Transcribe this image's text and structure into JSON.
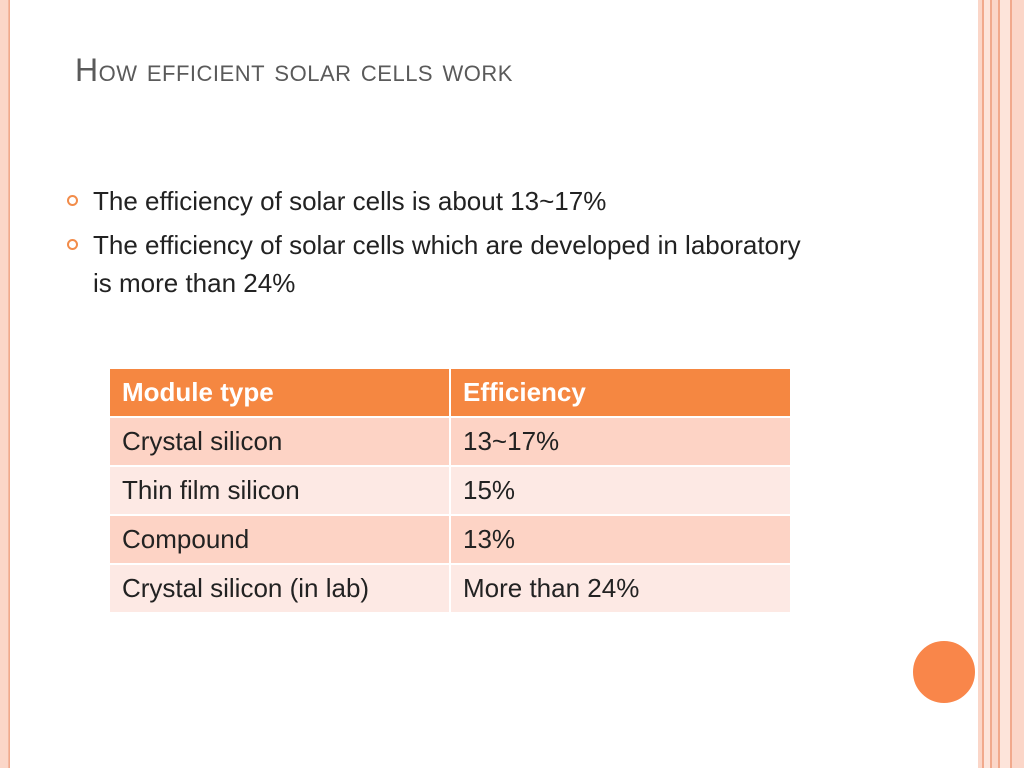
{
  "slide": {
    "title": "How efficient solar cells work",
    "bullets": [
      "The efficiency of solar cells is about 13~17%",
      "The efficiency of solar cells which are developed in laboratory is more than 24%"
    ],
    "table": {
      "headers": [
        "Module type",
        "Efficiency"
      ],
      "rows": [
        [
          "Crystal silicon",
          "13~17%"
        ],
        [
          "Thin film silicon",
          "15%"
        ],
        [
          "Compound",
          "13%"
        ],
        [
          "Crystal silicon (in lab)",
          "More than 24%"
        ]
      ]
    }
  },
  "colors": {
    "accent": "#f58741",
    "row_odd": "#fdd3c5",
    "row_even": "#fde9e4",
    "title": "#5a5a5a"
  },
  "icons": {
    "bullet": "ring-bullet-icon",
    "decoration": "orange-circle"
  }
}
